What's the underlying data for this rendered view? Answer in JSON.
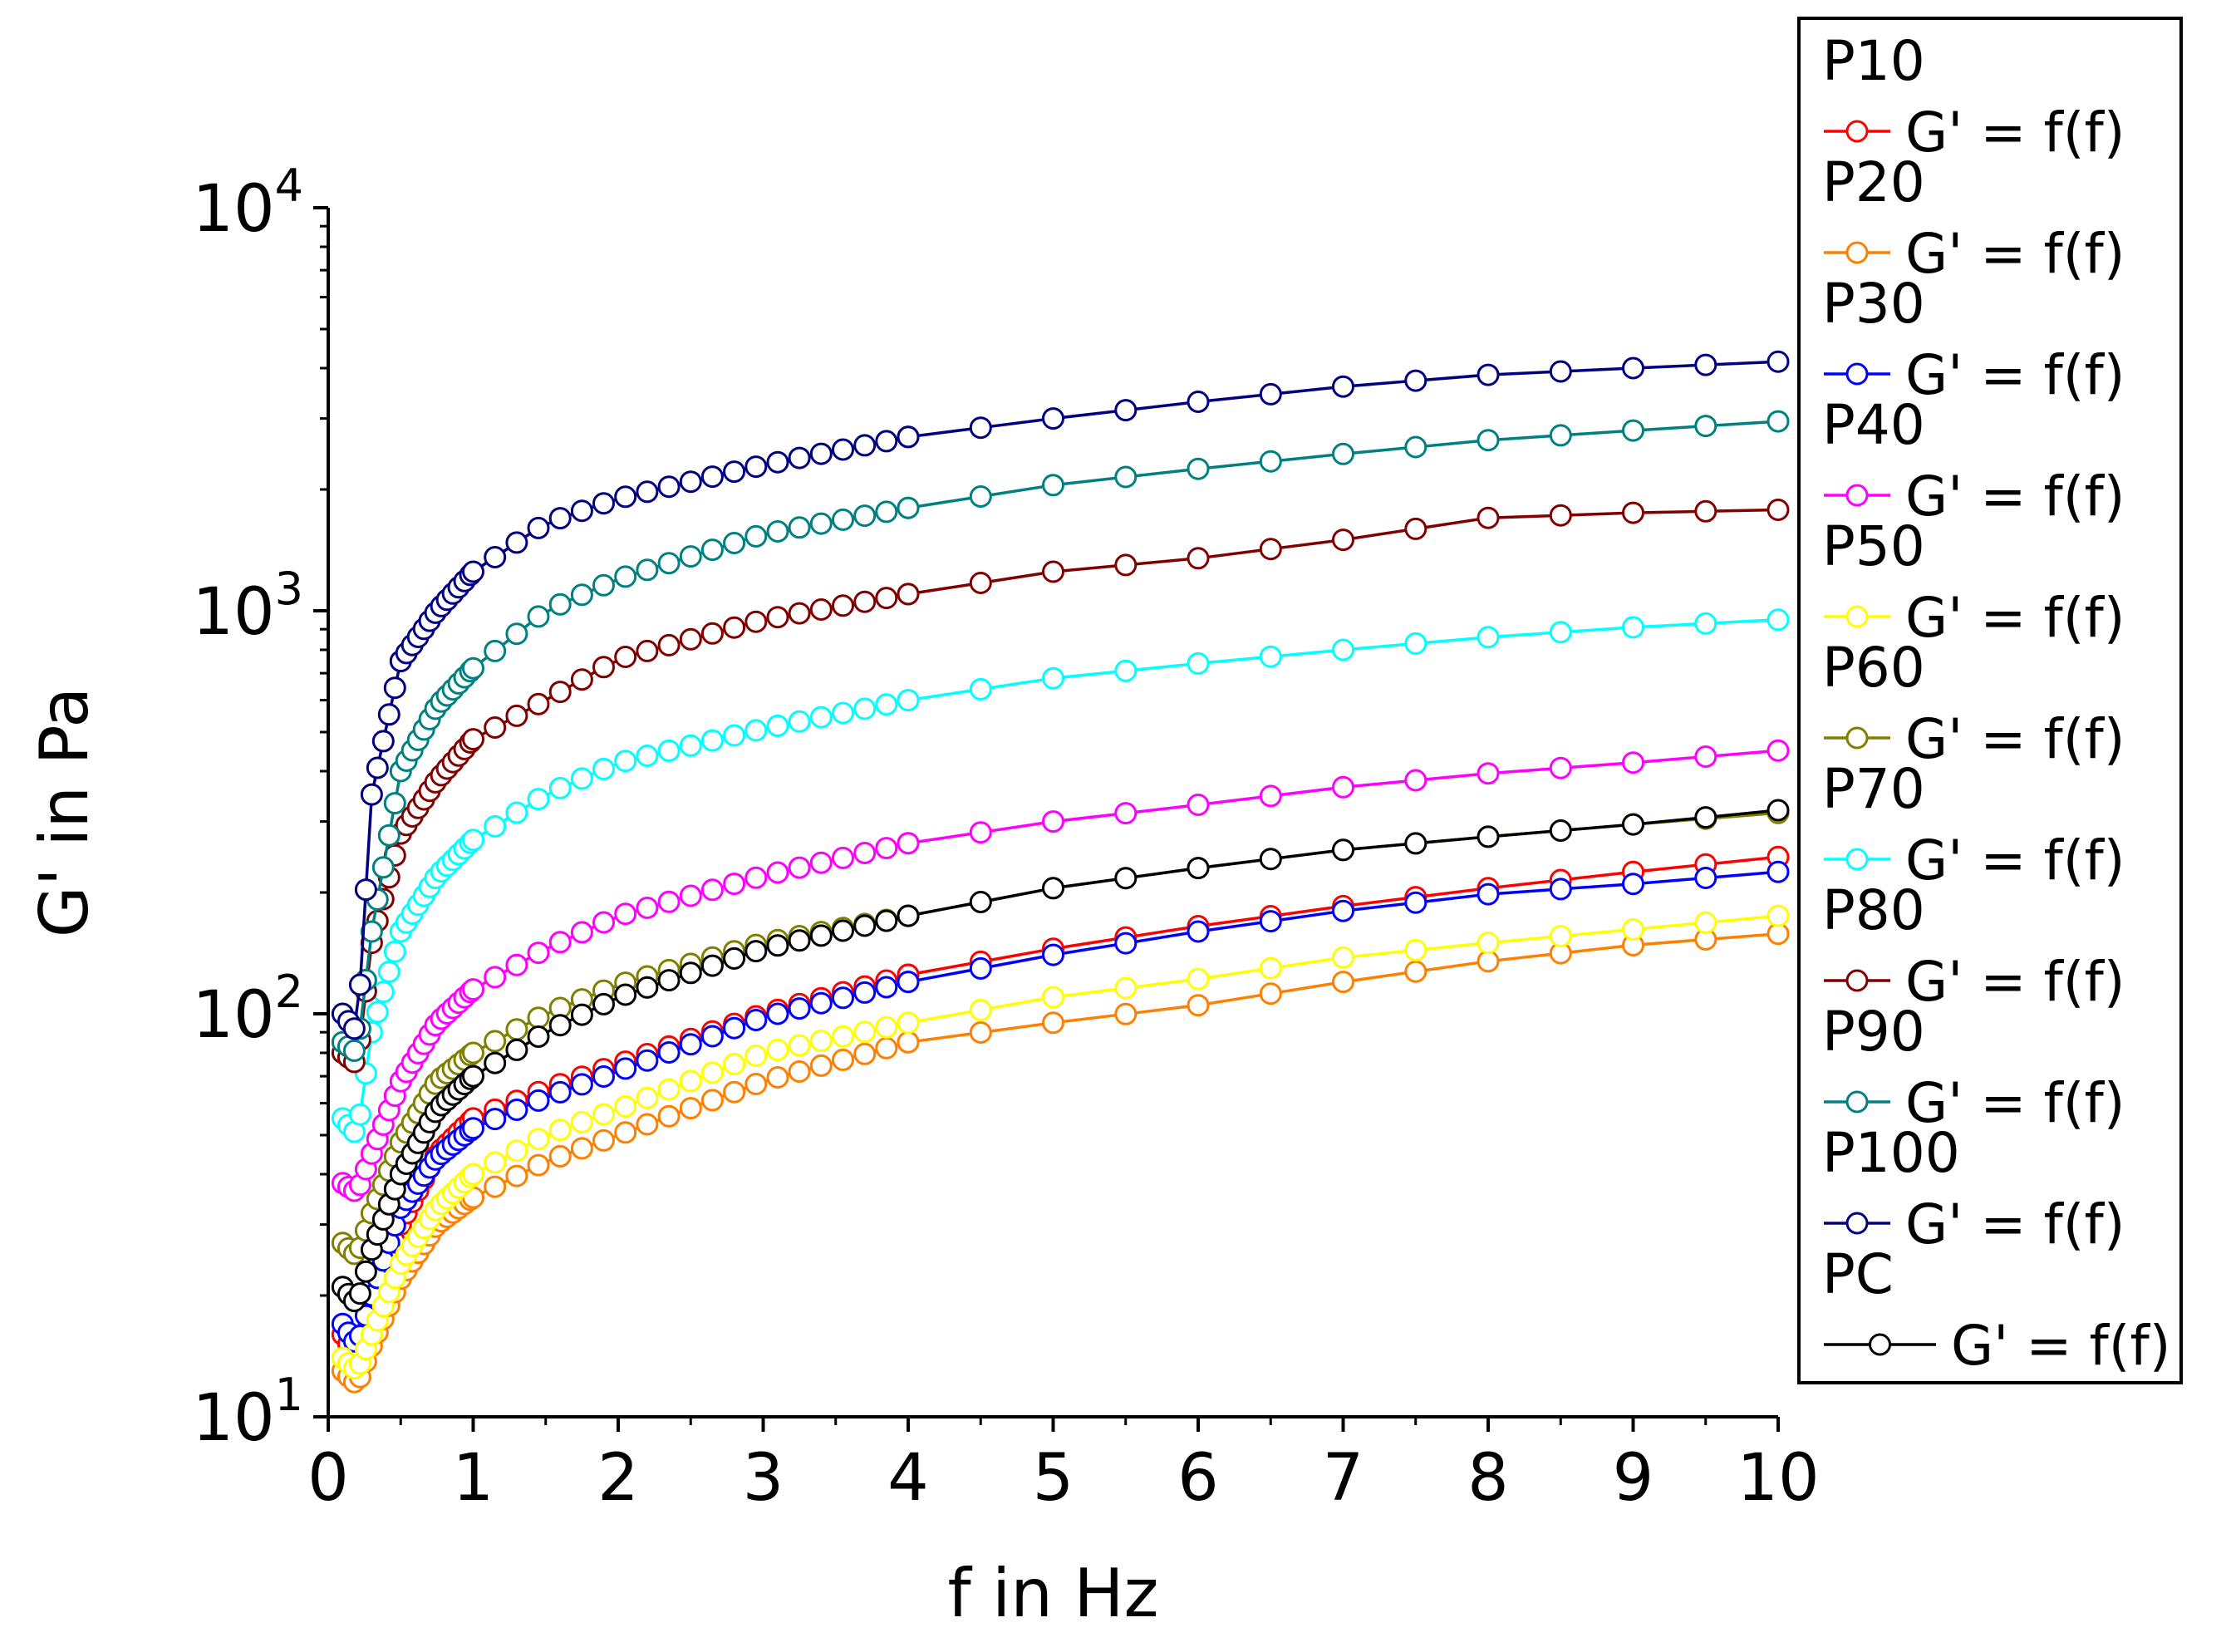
{
  "chart_data": {
    "type": "line",
    "title": "",
    "xlabel": "f in Hz",
    "ylabel": "G' in Pa",
    "xlim": [
      0,
      10
    ],
    "ylim": [
      10,
      10000
    ],
    "yscale": "log",
    "x_ticks": [
      "0",
      "1",
      "2",
      "3",
      "4",
      "5",
      "6",
      "7",
      "8",
      "9",
      "10"
    ],
    "y_ticks": [
      {
        "base": "10",
        "exp": "1"
      },
      {
        "base": "10",
        "exp": "2"
      },
      {
        "base": "10",
        "exp": "3"
      },
      {
        "base": "10",
        "exp": "4"
      }
    ],
    "grid": false,
    "legend_position": "right",
    "marker": "open-circle",
    "series": [
      {
        "group": "P10",
        "name": "G' = f(f)",
        "color": "#ff0000",
        "x": [
          0.1,
          0.2,
          0.3,
          0.5,
          0.75,
          1,
          1.5,
          2,
          3,
          4,
          5,
          6,
          7,
          8,
          9,
          10
        ],
        "values": [
          16,
          14,
          18,
          30,
          45,
          55,
          65,
          75,
          100,
          125,
          145,
          165,
          185,
          205,
          225,
          245
        ]
      },
      {
        "group": "P20",
        "name": "G' = f(f)",
        "color": "#ff8000",
        "x": [
          0.1,
          0.2,
          0.3,
          0.5,
          0.75,
          1,
          1.5,
          2,
          3,
          4,
          5,
          6,
          7,
          8,
          9,
          10
        ],
        "values": [
          13,
          12,
          15,
          22,
          30,
          35,
          43,
          50,
          68,
          85,
          95,
          105,
          120,
          135,
          148,
          158
        ]
      },
      {
        "group": "P30",
        "name": "G' = f(f)",
        "color": "#0000ff",
        "x": [
          0.1,
          0.2,
          0.3,
          0.5,
          0.75,
          1,
          1.5,
          2,
          3,
          4,
          5,
          6,
          7,
          8,
          9,
          10
        ],
        "values": [
          17,
          15,
          20,
          33,
          44,
          52,
          62,
          72,
          98,
          120,
          140,
          160,
          180,
          198,
          210,
          225
        ]
      },
      {
        "group": "P40",
        "name": "G' = f(f)",
        "color": "#ff00ff",
        "x": [
          0.1,
          0.2,
          0.3,
          0.5,
          0.75,
          1,
          1.5,
          2,
          3,
          4,
          5,
          6,
          7,
          8,
          9,
          10
        ],
        "values": [
          38,
          36,
          45,
          68,
          95,
          115,
          145,
          175,
          220,
          265,
          300,
          330,
          365,
          395,
          420,
          450
        ]
      },
      {
        "group": "P50",
        "name": "G' = f(f)",
        "color": "#ffff00",
        "x": [
          0.1,
          0.2,
          0.3,
          0.5,
          0.75,
          1,
          1.5,
          2,
          3,
          4,
          5,
          6,
          7,
          8,
          9,
          10
        ],
        "values": [
          14,
          13,
          16,
          24,
          33,
          40,
          50,
          58,
          80,
          95,
          110,
          122,
          138,
          150,
          162,
          175
        ]
      },
      {
        "group": "P60",
        "name": "G' = f(f)",
        "color": "#808000",
        "x": [
          0.1,
          0.2,
          0.3,
          0.5,
          0.75,
          1,
          1.5,
          2,
          3,
          4,
          5,
          6,
          7,
          8,
          9,
          10
        ],
        "values": [
          27,
          25,
          32,
          48,
          68,
          80,
          100,
          118,
          150,
          175,
          205,
          230,
          255,
          275,
          295,
          315
        ]
      },
      {
        "group": "P70",
        "name": "G' = f(f)",
        "color": "#00ffff",
        "x": [
          0.1,
          0.2,
          0.3,
          0.5,
          0.75,
          1,
          1.5,
          2,
          3,
          4,
          5,
          6,
          7,
          8,
          9,
          10
        ],
        "values": [
          55,
          50,
          90,
          160,
          220,
          270,
          350,
          420,
          510,
          600,
          680,
          740,
          800,
          860,
          910,
          950
        ]
      },
      {
        "group": "P80",
        "name": "G' = f(f)",
        "color": "#800000",
        "x": [
          0.1,
          0.2,
          0.3,
          0.5,
          0.75,
          1,
          1.5,
          2,
          3,
          4,
          5,
          6,
          7,
          8,
          9,
          10
        ],
        "values": [
          80,
          75,
          150,
          280,
          380,
          480,
          600,
          760,
          950,
          1100,
          1250,
          1350,
          1500,
          1700,
          1750,
          1780
        ]
      },
      {
        "group": "P90",
        "name": "G' = f(f)",
        "color": "#008080",
        "x": [
          0.1,
          0.2,
          0.3,
          0.5,
          0.75,
          1,
          1.5,
          2,
          3,
          4,
          5,
          6,
          7,
          8,
          9,
          10
        ],
        "values": [
          85,
          80,
          160,
          400,
          580,
          720,
          1000,
          1200,
          1550,
          1800,
          2050,
          2250,
          2450,
          2650,
          2800,
          2950
        ]
      },
      {
        "group": "P100",
        "name": "G' = f(f)",
        "color": "#000080",
        "x": [
          0.1,
          0.2,
          0.3,
          0.5,
          0.75,
          1,
          1.5,
          2,
          3,
          4,
          5,
          6,
          7,
          8,
          9,
          10
        ],
        "values": [
          100,
          90,
          350,
          750,
          1000,
          1250,
          1650,
          1900,
          2300,
          2700,
          3000,
          3300,
          3600,
          3850,
          4000,
          4150
        ]
      },
      {
        "group": "PC",
        "name": "G' = f(f)",
        "color": "#000000",
        "x": [
          0.1,
          0.2,
          0.3,
          0.5,
          0.75,
          1,
          1.5,
          2,
          3,
          4,
          5,
          6,
          7,
          8,
          9,
          10
        ],
        "values": [
          21,
          19,
          26,
          40,
          58,
          70,
          90,
          110,
          145,
          175,
          205,
          230,
          255,
          275,
          295,
          320
        ]
      }
    ]
  }
}
